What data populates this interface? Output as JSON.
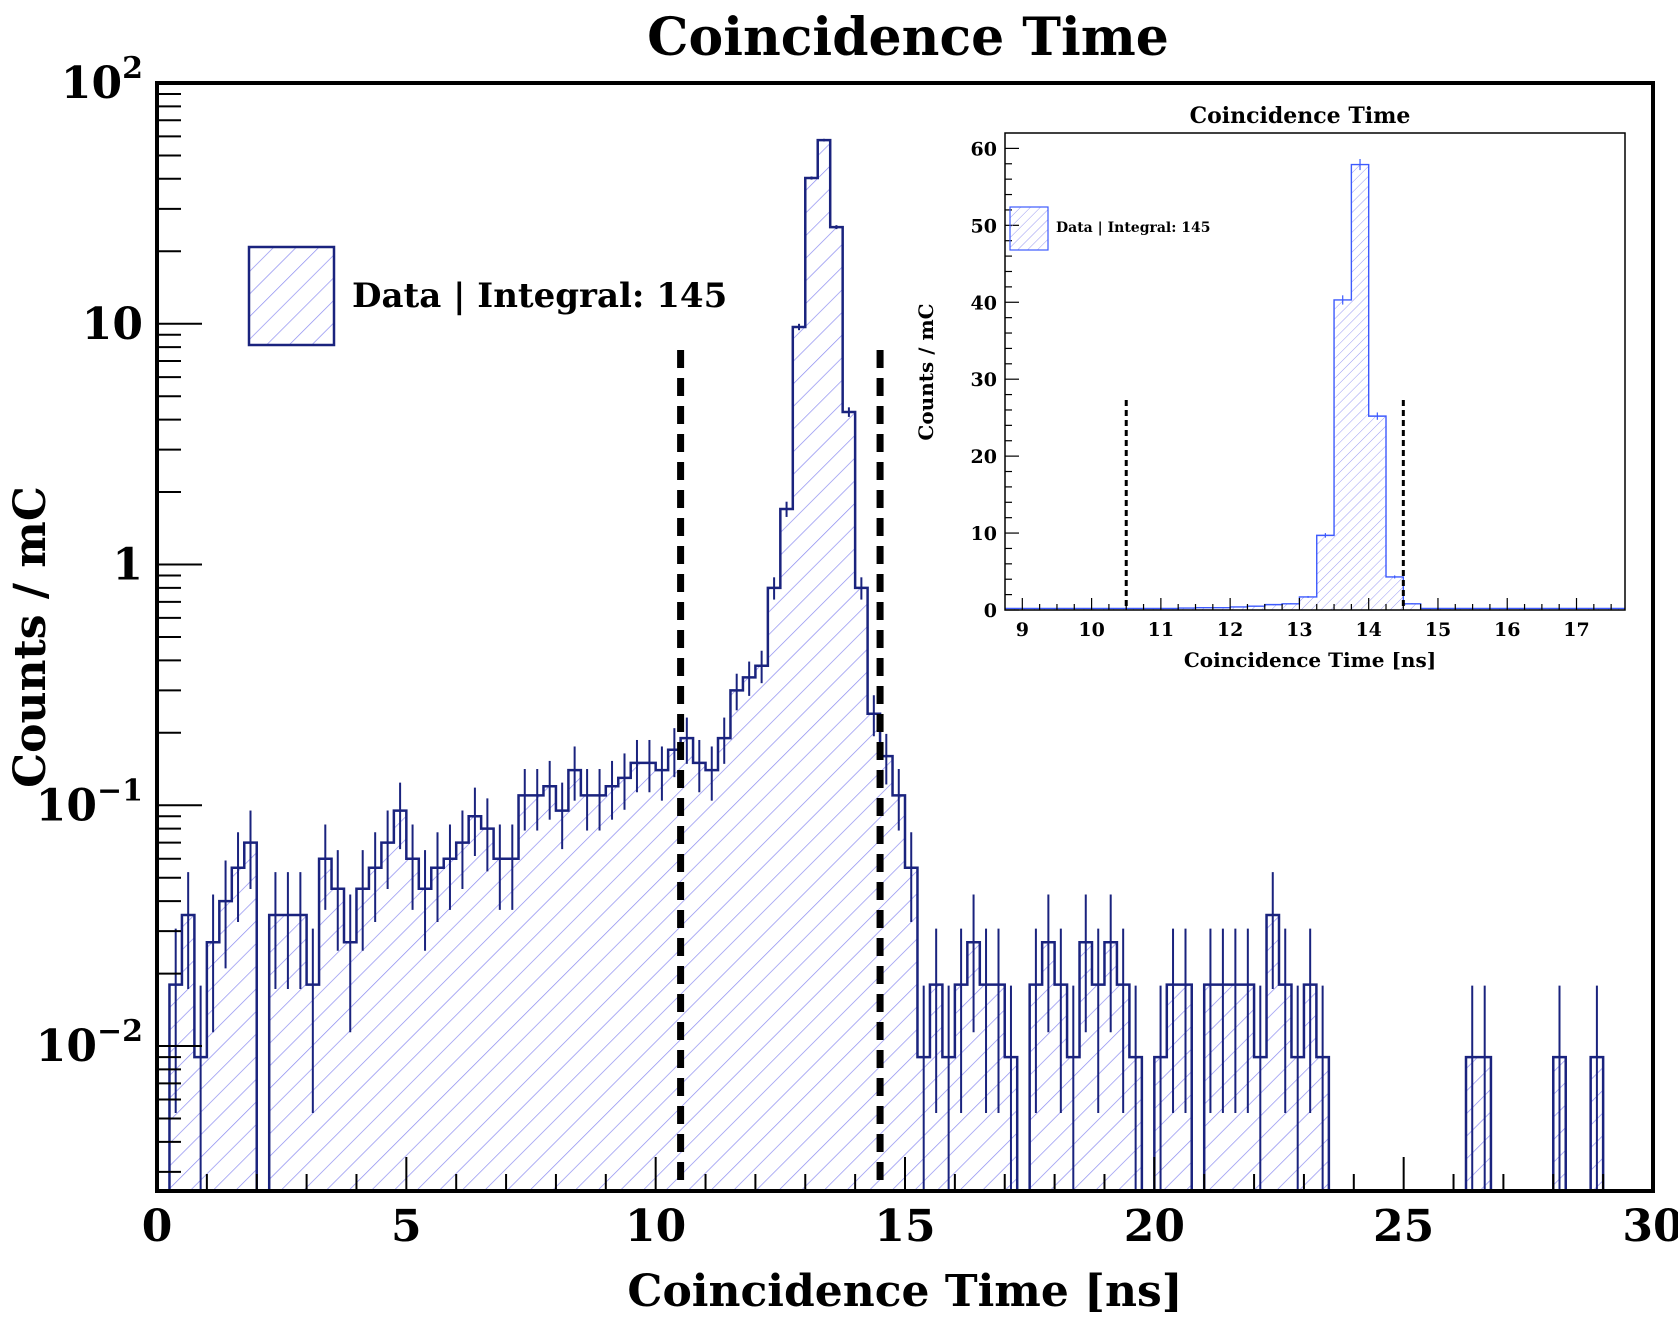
{
  "chart_data": [
    {
      "type": "histogram",
      "title": "Coincidence Time",
      "xlabel": "Coincidence Time [ns]",
      "ylabel": "Counts / mC",
      "xlim": [
        0,
        30
      ],
      "ylim": [
        0.0025,
        100
      ],
      "yscale": "log",
      "grid": false,
      "legend_position": "top-left",
      "x_ticks": [
        "0",
        "5",
        "10",
        "15",
        "20",
        "25",
        "30"
      ],
      "y_ticks": [
        {
          "value": 0.01,
          "base": "10",
          "exp": "−2"
        },
        {
          "value": 0.1,
          "base": "10",
          "exp": "−1"
        },
        {
          "value": 1,
          "label": "1"
        },
        {
          "value": 10,
          "label": "10"
        },
        {
          "value": 100,
          "base": "10",
          "exp": "2"
        }
      ],
      "cut_lines": [
        10.5,
        14.5
      ],
      "bin_edges_start": 0,
      "bin_width": 0.25,
      "values": [
        0.0018,
        0.018,
        0.035,
        0.009,
        0.027,
        0.04,
        0.055,
        0.07,
        0.0018,
        0.035,
        0.035,
        0.035,
        0.018,
        0.06,
        0.045,
        0.027,
        0.045,
        0.055,
        0.07,
        0.095,
        0.06,
        0.045,
        0.055,
        0.06,
        0.07,
        0.09,
        0.08,
        0.06,
        0.06,
        0.11,
        0.11,
        0.12,
        0.095,
        0.14,
        0.11,
        0.11,
        0.12,
        0.13,
        0.15,
        0.15,
        0.14,
        0.17,
        0.19,
        0.15,
        0.14,
        0.19,
        0.3,
        0.34,
        0.38,
        0.8,
        1.7,
        9.7,
        40.3,
        57.9,
        25.2,
        4.3,
        0.8,
        0.24,
        0.16,
        0.11,
        0.055,
        0.009,
        0.018,
        0.009,
        0.018,
        0.027,
        0.018,
        0.018,
        0.009,
        0.0018,
        0.018,
        0.027,
        0.018,
        0.009,
        0.027,
        0.018,
        0.027,
        0.018,
        0.009,
        0.0018,
        0.009,
        0.018,
        0.018,
        0.0018,
        0.018,
        0.018,
        0.018,
        0.018,
        0.009,
        0.035,
        0.018,
        0.009,
        0.018,
        0.009,
        0.0018,
        0.0018,
        0.0018,
        0.0018,
        0.0018,
        0.0018,
        0.0018,
        0.0018,
        0.0018,
        0.0018,
        0.0018,
        0.009,
        0.009,
        0.0018,
        0.0018,
        0.0018,
        0.0018,
        0.0018,
        0.009,
        0.0018,
        0.0018,
        0.009,
        0.0018,
        0.0018,
        0.0018,
        0.0018
      ],
      "legend": {
        "label": "Data | Integral: 145"
      },
      "colors": {
        "line": "#1a237e",
        "hatch": "#8c8cf0",
        "cut_line": "#000000"
      }
    },
    {
      "type": "histogram",
      "title": "Coincidence Time",
      "xlabel": "Coincidence Time [ns]",
      "ylabel": "Counts / mC",
      "xlim": [
        8.75,
        17.7
      ],
      "ylim": [
        0,
        62
      ],
      "yscale": "linear",
      "grid": false,
      "legend_position": "top-left",
      "x_ticks": [
        "9",
        "10",
        "11",
        "12",
        "13",
        "14",
        "15",
        "16",
        "17"
      ],
      "y_ticks": [
        "0",
        "10",
        "20",
        "30",
        "40",
        "50",
        "60"
      ],
      "cut_lines": [
        10.5,
        14.5
      ],
      "bin_edges_start": 8.75,
      "bin_width": 0.25,
      "values": [
        0.2,
        0.2,
        0.2,
        0.2,
        0.2,
        0.2,
        0.2,
        0.2,
        0.2,
        0.2,
        0.25,
        0.3,
        0.3,
        0.4,
        0.5,
        0.7,
        0.8,
        1.7,
        9.7,
        40.3,
        57.9,
        25.2,
        4.3,
        0.8,
        0.2,
        0.2,
        0.2,
        0.2,
        0.2,
        0.2,
        0.2,
        0.2,
        0.2,
        0.2,
        0.2,
        0.2
      ],
      "legend": {
        "label": "Data | Integral: 145"
      },
      "colors": {
        "line": "#3d5afe",
        "hatch": "#9a9af2",
        "cut_line": "#000000"
      }
    }
  ]
}
